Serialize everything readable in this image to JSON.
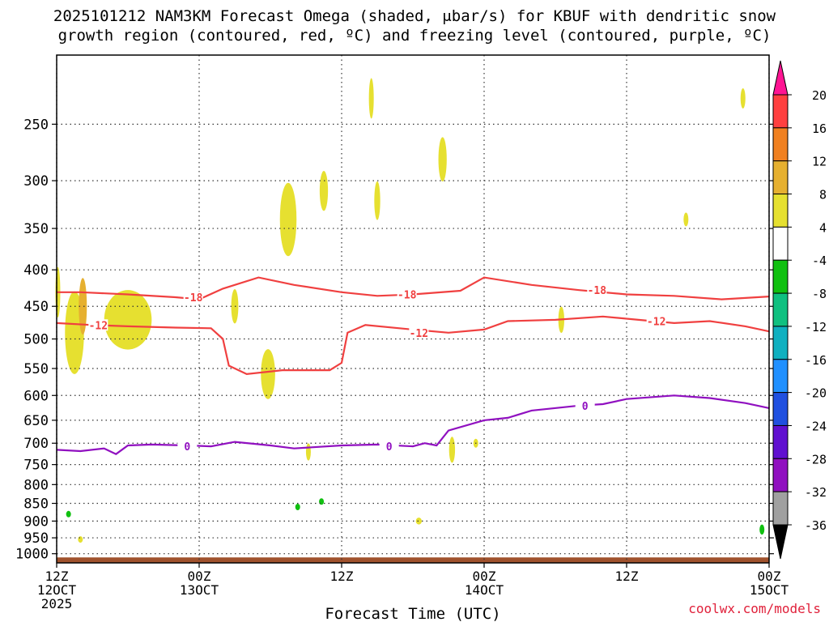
{
  "title_line1": "2025101212 NAM3KM Forecast Omega (shaded, μbar/s) for KBUF with dendritic snow",
  "title_line2": "growth region (contoured, red, ºC) and freezing level (contoured, purple, ºC)",
  "credit": "coolwx.com/models",
  "chart_data": {
    "type": "time-height cross section",
    "xlabel": "Forecast Time (UTC)",
    "ylabel": "",
    "x_ticks": [
      {
        "hour": 0,
        "line1": "12Z",
        "line2": "12OCT",
        "line3": "2025"
      },
      {
        "hour": 12,
        "line1": "00Z",
        "line2": "13OCT",
        "line3": ""
      },
      {
        "hour": 24,
        "line1": "12Z",
        "line2": "",
        "line3": ""
      },
      {
        "hour": 36,
        "line1": "00Z",
        "line2": "14OCT",
        "line3": ""
      },
      {
        "hour": 48,
        "line1": "12Z",
        "line2": "",
        "line3": ""
      },
      {
        "hour": 60,
        "line1": "00Z",
        "line2": "15OCT",
        "line3": ""
      }
    ],
    "xlim": [
      0,
      60
    ],
    "y_ticks": [
      250,
      300,
      350,
      400,
      450,
      500,
      550,
      600,
      650,
      700,
      750,
      800,
      850,
      900,
      950,
      1000
    ],
    "ylim_hpa": [
      200,
      1030
    ],
    "y_scale": "log-pressure",
    "grid": true,
    "grid_style": "dotted",
    "surface_fill_color": "#a0522d",
    "surface_pressure_hpa": 1012,
    "colorbar": {
      "units": "μbar/s",
      "levels": [
        "20",
        "16",
        "12",
        "8",
        "4",
        "-4",
        "-8",
        "-12",
        "-16",
        "-20",
        "-24",
        "-28",
        "-32",
        "-36"
      ],
      "colors": [
        "#ff1493",
        "#ff4040",
        "#f08020",
        "#e6b030",
        "#e6e030",
        "#ffffff",
        "#10c010",
        "#10c080",
        "#10b0c0",
        "#2090ff",
        "#2050e0",
        "#6010d0",
        "#9010c0",
        "#a0a0a0",
        "#000000"
      ]
    },
    "contours": [
      {
        "name": "-18",
        "color": "#f04040",
        "points": [
          [
            0,
            430
          ],
          [
            2,
            430
          ],
          [
            6,
            433
          ],
          [
            10,
            437
          ],
          [
            12,
            440
          ],
          [
            14,
            425
          ],
          [
            17,
            410
          ],
          [
            20,
            420
          ],
          [
            24,
            430
          ],
          [
            27,
            435
          ],
          [
            30,
            433
          ],
          [
            34,
            428
          ],
          [
            36,
            410
          ],
          [
            40,
            420
          ],
          [
            44,
            427
          ],
          [
            48,
            433
          ],
          [
            52,
            435
          ],
          [
            56,
            440
          ],
          [
            60,
            436
          ]
        ],
        "labels": [
          [
            11.5,
            437
          ],
          [
            29.5,
            433
          ],
          [
            45.5,
            427
          ]
        ]
      },
      {
        "name": "-12",
        "color": "#f04040",
        "points": [
          [
            0,
            475
          ],
          [
            3,
            478
          ],
          [
            6,
            480
          ],
          [
            10,
            482
          ],
          [
            13,
            483
          ],
          [
            14,
            500
          ],
          [
            14.5,
            545
          ],
          [
            16,
            560
          ],
          [
            19,
            553
          ],
          [
            23,
            553
          ],
          [
            24,
            540
          ],
          [
            24.5,
            490
          ],
          [
            26,
            478
          ],
          [
            30,
            485
          ],
          [
            33,
            490
          ],
          [
            36,
            485
          ],
          [
            38,
            472
          ],
          [
            42,
            470
          ],
          [
            46,
            465
          ],
          [
            49,
            470
          ],
          [
            52,
            475
          ],
          [
            55,
            472
          ],
          [
            58,
            480
          ],
          [
            60,
            488
          ]
        ],
        "labels": [
          [
            3.5,
            478
          ],
          [
            30.5,
            490
          ],
          [
            50.5,
            472
          ]
        ]
      },
      {
        "name": "0",
        "color": "#9010c0",
        "points": [
          [
            0,
            715
          ],
          [
            2,
            718
          ],
          [
            4,
            712
          ],
          [
            5,
            725
          ],
          [
            6,
            705
          ],
          [
            8,
            703
          ],
          [
            11,
            705
          ],
          [
            13,
            707
          ],
          [
            15,
            697
          ],
          [
            18,
            705
          ],
          [
            20,
            712
          ],
          [
            24,
            705
          ],
          [
            27,
            703
          ],
          [
            30,
            707
          ],
          [
            31,
            700
          ],
          [
            32,
            705
          ],
          [
            33,
            672
          ],
          [
            36,
            650
          ],
          [
            38,
            645
          ],
          [
            40,
            630
          ],
          [
            44,
            620
          ],
          [
            46,
            617
          ],
          [
            48,
            607
          ],
          [
            52,
            600
          ],
          [
            55,
            605
          ],
          [
            58,
            615
          ],
          [
            60,
            625
          ]
        ],
        "labels": [
          [
            11,
            707
          ],
          [
            28,
            707
          ],
          [
            44.5,
            620
          ]
        ]
      }
    ],
    "omega_blobs_positive": [
      {
        "h": 0.1,
        "p": 430,
        "w": 0.4,
        "dp": 70
      },
      {
        "h": 1.5,
        "p": 490,
        "w": 1.6,
        "dp": 130
      },
      {
        "h": 6,
        "p": 470,
        "w": 4,
        "dp": 90
      },
      {
        "h": 15,
        "p": 450,
        "w": 0.6,
        "dp": 50
      },
      {
        "h": 17.8,
        "p": 560,
        "w": 1.2,
        "dp": 90
      },
      {
        "h": 19.5,
        "p": 340,
        "w": 1.4,
        "dp": 80
      },
      {
        "h": 22.5,
        "p": 310,
        "w": 0.7,
        "dp": 40
      },
      {
        "h": 26.5,
        "p": 230,
        "w": 0.4,
        "dp": 30
      },
      {
        "h": 27,
        "p": 320,
        "w": 0.5,
        "dp": 40
      },
      {
        "h": 32.5,
        "p": 280,
        "w": 0.7,
        "dp": 40
      },
      {
        "h": 33.3,
        "p": 715,
        "w": 0.5,
        "dp": 60
      },
      {
        "h": 42.5,
        "p": 470,
        "w": 0.5,
        "dp": 40
      },
      {
        "h": 53,
        "p": 340,
        "w": 0.2,
        "dp": 15
      },
      {
        "h": 57.8,
        "p": 230,
        "w": 0.2,
        "dp": 15
      },
      {
        "h": 30.5,
        "p": 900,
        "w": 0.5,
        "dp": 20
      },
      {
        "h": 35.3,
        "p": 700,
        "w": 0.3,
        "dp": 20
      },
      {
        "h": 2,
        "p": 955,
        "w": 0.2,
        "dp": 10
      },
      {
        "h": 21.2,
        "p": 720,
        "w": 0.3,
        "dp": 40
      }
    ],
    "omega_blobs_negative": [
      {
        "h": 1,
        "p": 880,
        "w": 0.25,
        "dp": 8
      },
      {
        "h": 20.3,
        "p": 860,
        "w": 0.4,
        "dp": 15
      },
      {
        "h": 22.3,
        "p": 845,
        "w": 0.3,
        "dp": 12
      },
      {
        "h": 59.4,
        "p": 925,
        "w": 0.25,
        "dp": 30
      }
    ]
  }
}
